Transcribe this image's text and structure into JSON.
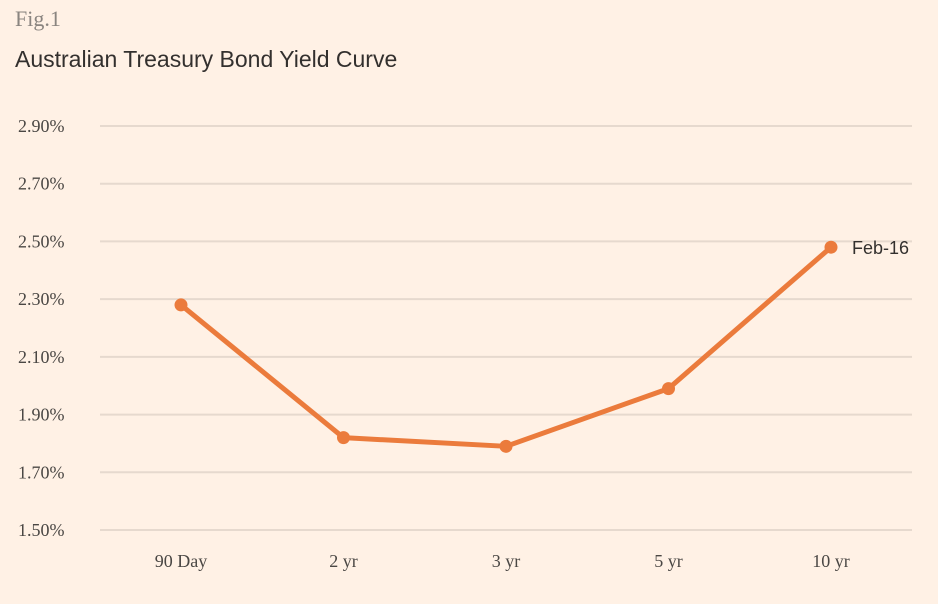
{
  "figure": {
    "label": "Fig.1",
    "title": "Australian Treasury Bond Yield Curve"
  },
  "colors": {
    "background": "#fff1e5",
    "gridline": "#e6d9ce",
    "series": "#eb7b3c"
  },
  "chart_data": {
    "type": "line",
    "title": "Australian Treasury Bond Yield Curve",
    "xlabel": "",
    "ylabel": "",
    "categories": [
      "90 Day",
      "2 yr",
      "3 yr",
      "5 yr",
      "10 yr"
    ],
    "series": [
      {
        "name": "Feb-16",
        "values": [
          2.28,
          1.82,
          1.79,
          1.99,
          2.48
        ]
      }
    ],
    "ylim": [
      1.5,
      2.9
    ],
    "yticks": [
      1.5,
      1.7,
      1.9,
      2.1,
      2.3,
      2.5,
      2.7,
      2.9
    ],
    "ytick_labels": [
      "1.50%",
      "1.70%",
      "1.90%",
      "2.10%",
      "2.30%",
      "2.50%",
      "2.70%",
      "2.90%"
    ],
    "grid": true,
    "legend": "inline label at end of line"
  }
}
